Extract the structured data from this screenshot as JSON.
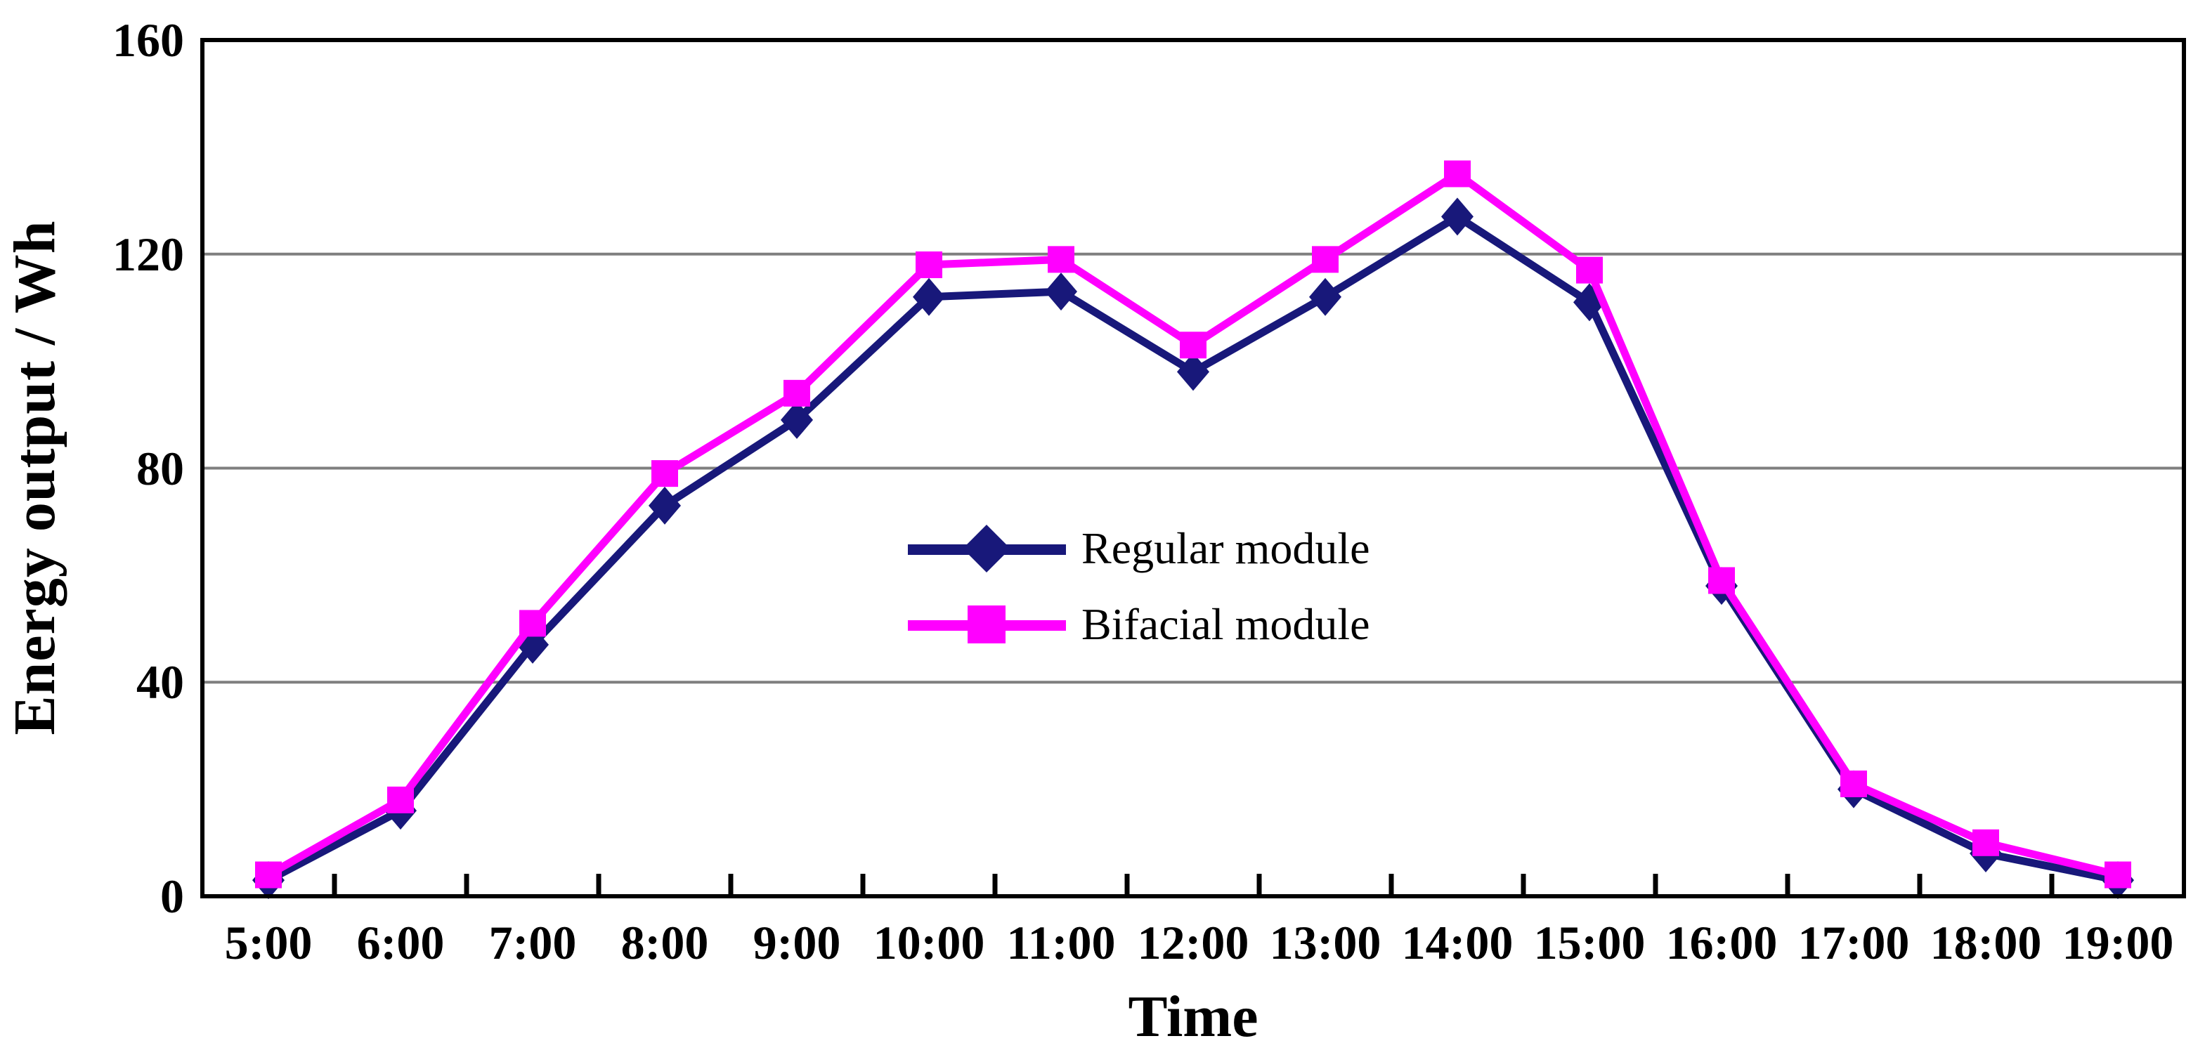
{
  "chart_data": {
    "type": "line",
    "categories": [
      "5:00",
      "6:00",
      "7:00",
      "8:00",
      "9:00",
      "10:00",
      "11:00",
      "12:00",
      "13:00",
      "14:00",
      "15:00",
      "16:00",
      "17:00",
      "18:00",
      "19:00"
    ],
    "series": [
      {
        "name": "Regular module",
        "marker": "diamond",
        "color": "#18187a",
        "values": [
          3,
          16,
          47,
          73,
          89,
          112,
          113,
          98,
          112,
          127,
          111,
          58,
          20,
          8,
          3
        ]
      },
      {
        "name": "Bifacial module",
        "marker": "square",
        "color": "#ff00ff",
        "values": [
          4,
          18,
          51,
          79,
          94,
          118,
          119,
          103,
          119,
          135,
          117,
          59,
          21,
          10,
          4
        ]
      }
    ],
    "xlabel": "Time",
    "ylabel": "Energy output / Wh",
    "ylim": [
      0,
      160
    ],
    "yticks": [
      0,
      40,
      80,
      120,
      160
    ],
    "grid": "horizontal-major",
    "legend_position": "inside-center"
  },
  "colors": {
    "axis": "#000000",
    "gridline": "#7f7f7f",
    "text": "#000000",
    "background": "#ffffff"
  }
}
